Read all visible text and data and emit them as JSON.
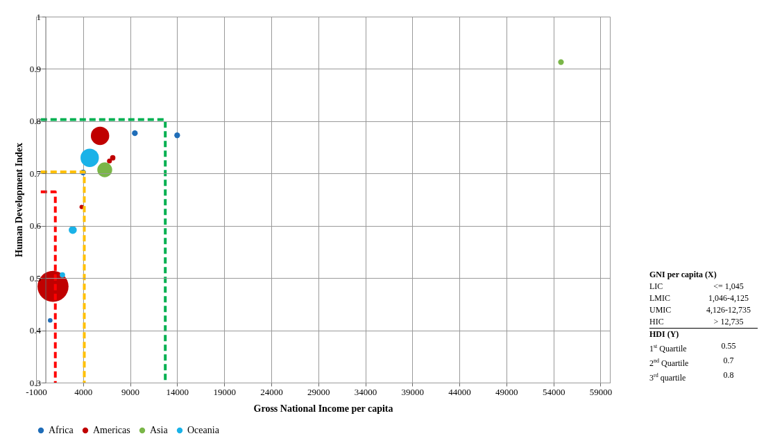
{
  "chart_data": {
    "type": "bubble",
    "xlabel": "Gross National Income per capita",
    "ylabel": "Human Development Index",
    "xlim": [
      -1000,
      60000
    ],
    "xticks": [
      -1000,
      4000,
      9000,
      14000,
      19000,
      24000,
      29000,
      34000,
      39000,
      44000,
      49000,
      54000,
      59000
    ],
    "ylim": [
      0.3,
      1
    ],
    "yticks": [
      0.3,
      0.4,
      0.5,
      0.6,
      0.7,
      0.8,
      0.9,
      1
    ],
    "grid": true,
    "legend": "bottom",
    "marker": "circle",
    "series": [
      {
        "name": "Africa",
        "color": "#1f6db8",
        "x": [
          9500,
          14000,
          500,
          4000
        ],
        "values": [
          0.777,
          0.773,
          0.419,
          0.702
        ],
        "sizes": [
          0.034,
          0.034,
          0.022,
          0.034
        ]
      },
      {
        "name": "Americas",
        "color": "#c00000",
        "x": [
          800,
          5800,
          7150,
          6800,
          3850
        ],
        "values": [
          0.484,
          0.772,
          0.73,
          0.724,
          0.636
        ],
        "sizes": [
          1,
          0.35,
          0.03,
          0.025,
          0.02
        ]
      },
      {
        "name": "Asia",
        "color": "#7ab648",
        "x": [
          6300,
          54800
        ],
        "values": [
          0.707,
          0.913
        ],
        "sizes": [
          0.23,
          0.034
        ]
      },
      {
        "name": "Oceania",
        "color": "#1ab2e8",
        "x": [
          4700,
          2900,
          1800
        ],
        "values": [
          0.73,
          0.592,
          0.506
        ],
        "sizes": [
          0.35,
          0.067,
          0.03
        ]
      },
      {
        "type": "line",
        "marker": "none",
        "color": "#ff0000",
        "line_style": "dashed",
        "x": [
          -500,
          1045,
          1045
        ],
        "values": [
          0.665,
          0.665,
          0.3
        ]
      },
      {
        "type": "line",
        "marker": "none",
        "color": "#ffc000",
        "line_style": "dashed",
        "x": [
          -500,
          4125,
          4125
        ],
        "values": [
          0.703,
          0.703,
          0.3
        ]
      },
      {
        "type": "line",
        "marker": "none",
        "color": "#00b050",
        "line_style": "dashed",
        "x": [
          -500,
          12735,
          12735
        ],
        "values": [
          0.803,
          0.803,
          0.3
        ]
      }
    ],
    "annotations": [
      "GNI per capita (X)",
      "LIC",
      "<= 1,045",
      "LMIC",
      "1,046-4,125",
      "UMIC",
      "4,126-12,735",
      "HIC",
      "> 12,735",
      "HDI (Y)",
      "1$^{st}$ Quartile",
      "0.55",
      "2$^{nd}$ Quartile",
      "0.7",
      "3$^{rd}$ quartile",
      "0.8"
    ]
  }
}
